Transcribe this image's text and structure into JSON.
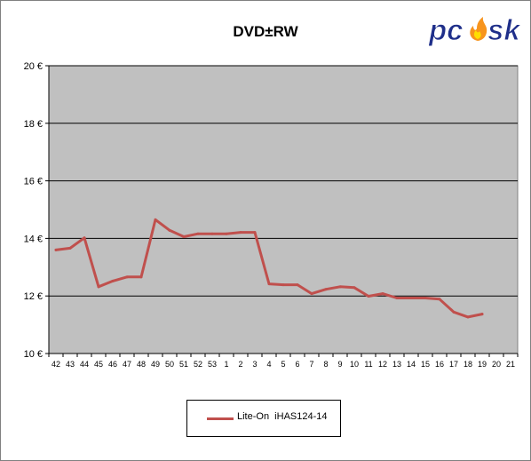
{
  "chart_data": {
    "type": "line",
    "title": "DVD±RW",
    "xlabel": "",
    "ylabel": "",
    "categories": [
      "42",
      "43",
      "44",
      "45",
      "46",
      "47",
      "48",
      "49",
      "50",
      "51",
      "52",
      "53",
      "1",
      "2",
      "3",
      "4",
      "5",
      "6",
      "7",
      "8",
      "9",
      "10",
      "11",
      "12",
      "13",
      "14",
      "15",
      "16",
      "17",
      "18",
      "19",
      "20",
      "21"
    ],
    "ylim": [
      10,
      20
    ],
    "yticks": [
      10,
      12,
      14,
      16,
      18,
      20
    ],
    "ytick_labels": [
      "10 €",
      "12 €",
      "14 €",
      "16 €",
      "18 €",
      "20 €"
    ],
    "grid": true,
    "legend_position": "bottom",
    "plot_background": "#c0c0c0",
    "series": [
      {
        "name": "Lite-On  iHAS124-14",
        "color": "#c0504d",
        "values": [
          13.6,
          13.66,
          14.02,
          12.32,
          12.52,
          12.66,
          12.66,
          14.65,
          14.28,
          14.06,
          14.16,
          14.16,
          14.16,
          14.21,
          14.21,
          12.42,
          12.39,
          12.39,
          12.08,
          12.23,
          12.32,
          12.29,
          11.99,
          12.08,
          11.93,
          11.93,
          11.93,
          11.89,
          11.44,
          11.27,
          11.37,
          null,
          null
        ]
      }
    ]
  },
  "logo": {
    "text": "pcesk"
  }
}
